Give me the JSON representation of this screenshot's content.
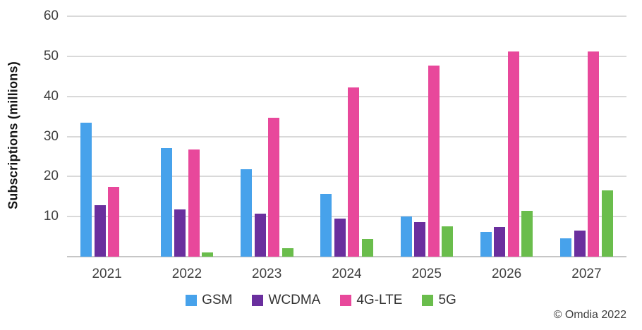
{
  "chart_data": {
    "type": "bar",
    "title": "",
    "xlabel": "",
    "ylabel": "Subscriptions (millions)",
    "ylim": [
      0,
      60
    ],
    "yticks": [
      10,
      20,
      30,
      40,
      50,
      60
    ],
    "grid": true,
    "legend_position": "bottom",
    "categories": [
      "2021",
      "2022",
      "2023",
      "2024",
      "2025",
      "2026",
      "2027"
    ],
    "series": [
      {
        "name": "GSM",
        "color": "#47a2eb",
        "values": [
          33.5,
          27.1,
          21.8,
          15.6,
          10.0,
          6.2,
          4.6
        ]
      },
      {
        "name": "WCDMA",
        "color": "#6a2f9e",
        "values": [
          12.8,
          11.8,
          10.7,
          9.5,
          8.7,
          7.4,
          6.5
        ]
      },
      {
        "name": "4G-LTE",
        "color": "#e8489b",
        "values": [
          17.5,
          26.8,
          34.7,
          42.2,
          47.7,
          51.2,
          51.2
        ]
      },
      {
        "name": "5G",
        "color": "#6abd4c",
        "values": [
          0,
          1.0,
          2.2,
          4.4,
          7.6,
          11.5,
          16.6
        ]
      }
    ],
    "footnote": "© Omdia 2022",
    "colors": {
      "gridline": "#d9d9d9",
      "axis_line": "#c6c6c6",
      "tick_text": "#404040"
    }
  }
}
